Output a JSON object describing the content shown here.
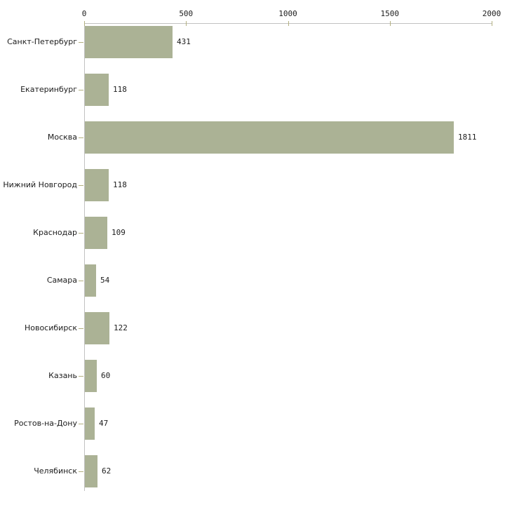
{
  "chart_data": {
    "type": "bar",
    "orientation": "horizontal",
    "title": "",
    "xlabel": "",
    "ylabel": "",
    "categories": [
      "Санкт-Петербург",
      "Екатеринбург",
      "Москва",
      "Нижний Новгород",
      "Краснодар",
      "Самара",
      "Новосибирск",
      "Казань",
      "Ростов-на-Дону",
      "Челябинск"
    ],
    "values": [
      431,
      118,
      1811,
      118,
      109,
      54,
      122,
      60,
      47,
      62
    ],
    "value_labels": [
      "431",
      "118",
      "1811",
      "118",
      "109",
      "54",
      "122",
      "60",
      "47",
      "62"
    ],
    "x_axis": {
      "position": "top",
      "range": [
        0,
        2000
      ],
      "ticks": [
        0,
        500,
        1000,
        1500,
        2000
      ],
      "tick_labels": [
        "0",
        "500",
        "1000",
        "1500",
        "2000"
      ]
    },
    "grid": false,
    "legend": false,
    "colors": {
      "bar": "#abb295",
      "axis_line": "#c1c1c1",
      "tick_mark": "#b3b080",
      "text": "#1c1c1c",
      "background": "#ffffff"
    }
  }
}
